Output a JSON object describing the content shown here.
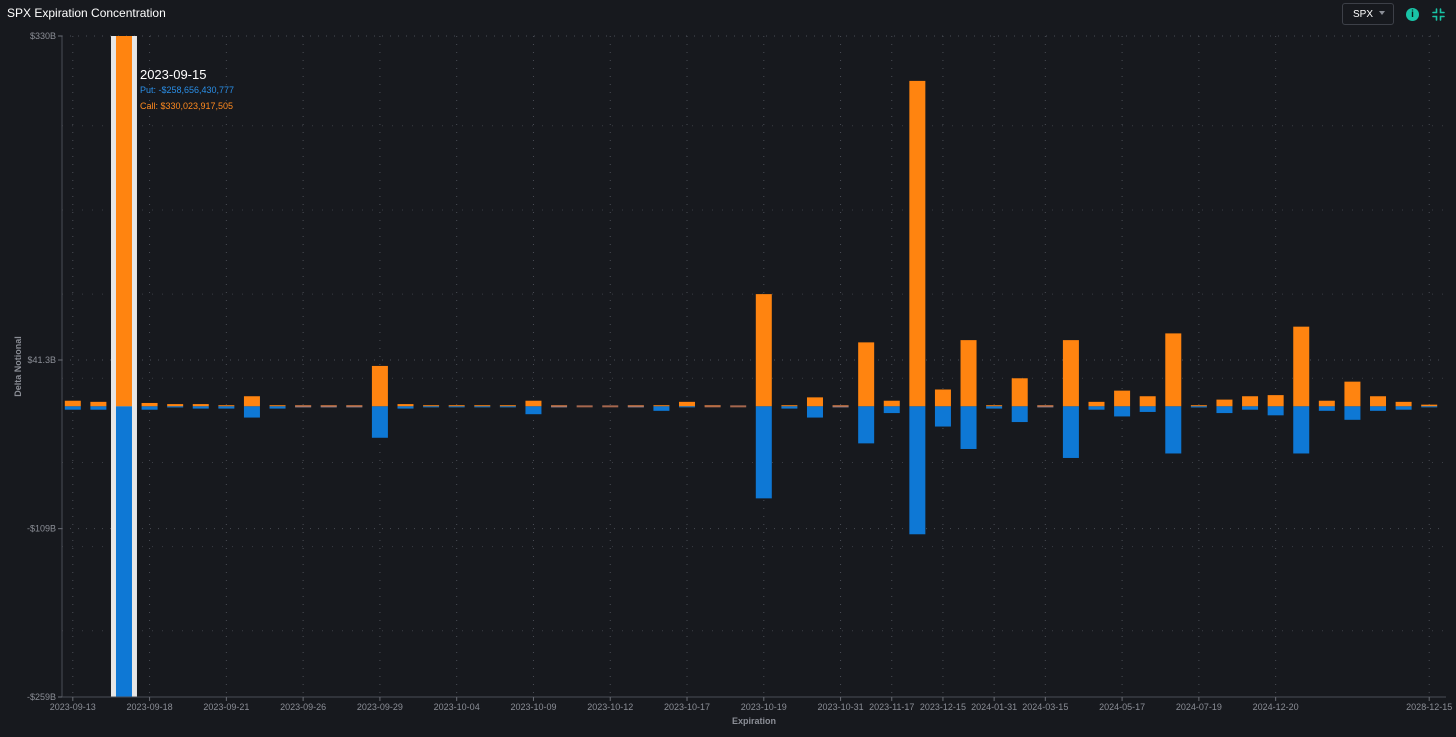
{
  "header": {
    "title": "SPX Expiration Concentration",
    "ticker_value": "SPX",
    "info_icon": "info-icon",
    "collapse_icon": "collapse-icon",
    "info_glyph": "i"
  },
  "colors": {
    "call": "#ff8410",
    "put": "#0e78d5",
    "background": "#17191e",
    "highlight": "#e6e6e6",
    "accent": "#19c3a6"
  },
  "tooltip": {
    "date": "2023-09-15",
    "put_text": "Put: -$258,656,430,777",
    "call_text": "Call: $330,023,917,505"
  },
  "chart_data": {
    "type": "bar",
    "stacked": "diverging",
    "title": "SPX Expiration Concentration",
    "xlabel": "Expiration",
    "ylabel": "Delta Notional",
    "ylim": [
      -259,
      330
    ],
    "unit": "$B",
    "y_tick_labels": [
      "$330B",
      "$41.3B",
      "-$109B",
      "-$259B"
    ],
    "y_tick_values": [
      330,
      41.3,
      -109,
      -259
    ],
    "x_tick_labels": [
      "2023-09-13",
      "2023-09-18",
      "2023-09-21",
      "2023-09-26",
      "2023-09-29",
      "2023-10-04",
      "2023-10-09",
      "2023-10-12",
      "2023-10-17",
      "2023-10-19",
      "2023-10-31",
      "2023-11-17",
      "2023-12-15",
      "2024-01-31",
      "2024-03-15",
      "2024-05-17",
      "2024-07-19",
      "2024-12-20",
      "2028-12-15"
    ],
    "x_tick_positions": [
      0,
      3,
      6,
      9,
      12,
      15,
      18,
      21,
      24,
      27,
      30,
      32,
      34,
      36,
      38,
      41,
      44,
      47,
      53
    ],
    "grid": true,
    "legend": "none",
    "highlighted_index": 2,
    "series": [
      {
        "name": "Call",
        "values": [
          5,
          4,
          330,
          3,
          2,
          2,
          1,
          9,
          1,
          0.5,
          0.5,
          0.5,
          36,
          2,
          1,
          1,
          1,
          1,
          5,
          0.5,
          0,
          0,
          0.5,
          1,
          4,
          0.5,
          0,
          100,
          1,
          8,
          0.5,
          57,
          5,
          290,
          15,
          59,
          1,
          25,
          0.5,
          59,
          4,
          14,
          9,
          65,
          1,
          6,
          9,
          10,
          71,
          5,
          22,
          9,
          4,
          1.5
        ]
      },
      {
        "name": "Put",
        "values": [
          -3,
          -3,
          -259,
          -3,
          -1,
          -2,
          -2,
          -10,
          -2,
          -0.5,
          -0.5,
          -0.5,
          -28,
          -2,
          -0.5,
          -0.5,
          -0.5,
          -0.5,
          -7,
          -0.5,
          0,
          0,
          -0.5,
          -4,
          -0.5,
          0,
          0,
          -82,
          -2,
          -10,
          -0.5,
          -33,
          -6,
          -114,
          -18,
          -38,
          -2,
          -14,
          -0.5,
          -46,
          -3,
          -9,
          -5,
          -42,
          -1,
          -6,
          -3,
          -8,
          -42,
          -4,
          -12,
          -4,
          -3,
          -0.5
        ]
      }
    ]
  }
}
